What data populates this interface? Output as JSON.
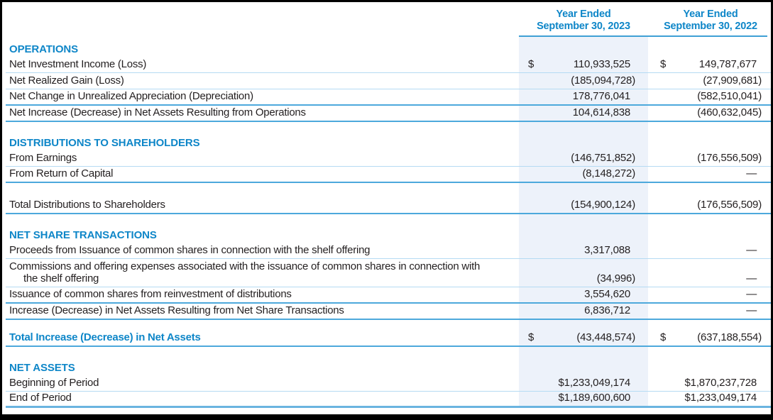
{
  "colors": {
    "accent": "#0e86c8",
    "text": "#231f20",
    "light_rule": "#b5dbf3",
    "medium_rule": "#4da9dc",
    "column_shade": "#edf2fa",
    "page_border": "#000000"
  },
  "header": {
    "col2023": {
      "line1": "Year Ended",
      "line2": "September 30, 2023"
    },
    "col2022": {
      "line1": "Year Ended",
      "line2": "September 30, 2022"
    }
  },
  "rows": [
    {
      "type": "section",
      "label": "OPERATIONS"
    },
    {
      "type": "item",
      "label": "Net Investment Income (Loss)",
      "cur1": "$",
      "v1": "110,933,525",
      "cur2": "$",
      "v2": "149,787,677",
      "line": "light"
    },
    {
      "type": "item",
      "label": "Net Realized Gain (Loss)",
      "v1": "(185,094,728)",
      "v2": "(27,909,681)",
      "line": "light"
    },
    {
      "type": "item",
      "label": "Net Change in Unrealized Appreciation (Depreciation)",
      "v1": "178,776,041",
      "v2": "(582,510,041)",
      "line": "medium"
    },
    {
      "type": "item",
      "label": "Net Increase (Decrease) in Net Assets Resulting from Operations",
      "v1": "104,614,838",
      "v2": "(460,632,045)",
      "line": "medium"
    },
    {
      "type": "spacer"
    },
    {
      "type": "section",
      "label": "DISTRIBUTIONS TO SHAREHOLDERS"
    },
    {
      "type": "item",
      "label": "From Earnings",
      "v1": "(146,751,852)",
      "v2": "(176,556,509)",
      "line": "light"
    },
    {
      "type": "item",
      "label": "From Return of Capital",
      "v1": "(8,148,272)",
      "v2": "—",
      "line": "medium"
    },
    {
      "type": "blank"
    },
    {
      "type": "item",
      "label": "Total Distributions to Shareholders",
      "v1": "(154,900,124)",
      "v2": "(176,556,509)",
      "line": "medium"
    },
    {
      "type": "spacer"
    },
    {
      "type": "section",
      "label": "NET SHARE TRANSACTIONS"
    },
    {
      "type": "item",
      "label": "Proceeds from Issuance of common shares in connection with the shelf offering",
      "v1": "3,317,088",
      "v2": "—",
      "line": "light"
    },
    {
      "type": "item",
      "two_line": true,
      "label": "Commissions and offering expenses associated with the issuance of common shares in connection with",
      "label2": "the shelf offering",
      "v1": "(34,996)",
      "v2": "—",
      "line": "light"
    },
    {
      "type": "item",
      "label": "Issuance of common shares from reinvestment of distributions",
      "v1": "3,554,620",
      "v2": "—",
      "line": "medium"
    },
    {
      "type": "item",
      "label": "Increase (Decrease) in Net Assets Resulting from Net Share Transactions",
      "v1": "6,836,712",
      "v2": "—",
      "line": "medium"
    },
    {
      "type": "spacer"
    },
    {
      "type": "item",
      "emphasis": true,
      "label": "Total Increase (Decrease) in Net Assets",
      "cur1": "$",
      "v1": "(43,448,574)",
      "cur2": "$",
      "v2": "(637,188,554)",
      "line": "medium"
    },
    {
      "type": "spacer"
    },
    {
      "type": "section",
      "label": "NET ASSETS"
    },
    {
      "type": "item",
      "label": "Beginning of Period",
      "v1": "$1,233,049,174",
      "v2": "$1,870,237,728",
      "line": "light"
    },
    {
      "type": "item",
      "label": "End of Period",
      "v1": "$1,189,600,600",
      "v2": "$1,233,049,174",
      "line": "bottom"
    }
  ]
}
